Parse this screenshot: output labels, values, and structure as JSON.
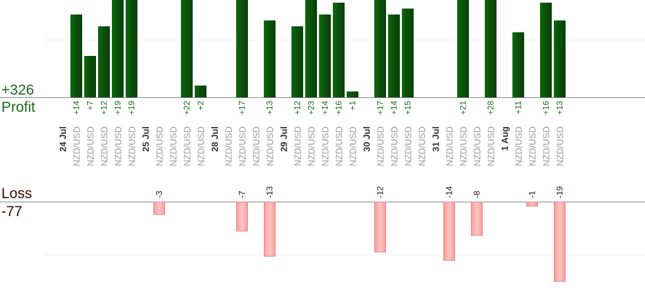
{
  "profit": {
    "total": "+326",
    "label": "Profit"
  },
  "loss": {
    "label": "Loss",
    "total": "-77"
  },
  "colors": {
    "profit_bar": "#0a5a0a",
    "profit_text": "#1a6a1a",
    "loss_bar": "#ffb0b0",
    "loss_text": "#3a0a0a",
    "pair_text": "#999999",
    "date_text": "#333333"
  },
  "chart_data": {
    "type": "bar",
    "categories": [
      "NZD/USD",
      "NZD/USD",
      "NZD/USD",
      "NZD/USD",
      "NZD/USD",
      "NZD/USD",
      "NZD/USD",
      "NZD/USD",
      "NZD/USD",
      "NZD/USD",
      "NZD/USD",
      "NZD/USD",
      "NZD/USD",
      "NZD/USD",
      "NZD/USD",
      "NZD/USD",
      "NZD/USD",
      "NZD/USD",
      "NZD/USD",
      "NZD/USD",
      "NZD/USD",
      "NZD/USD",
      "NZD/USD",
      "NZD/USD",
      "NZD/USD",
      "NZD/USD",
      "NZD/USD",
      "NZD/USD",
      "NZD/USD",
      "NZD/USD"
    ],
    "date_labels": [
      {
        "label": "24 Jul",
        "start": 0
      },
      {
        "label": "25 Jul",
        "start": 5
      },
      {
        "label": "28 Jul",
        "start": 9
      },
      {
        "label": "29 Jul",
        "start": 13
      },
      {
        "label": "30 Jul",
        "start": 18
      },
      {
        "label": "31 Jul",
        "start": 22
      },
      {
        "label": "1 Aug",
        "start": 26
      }
    ],
    "series": [
      {
        "name": "Profit",
        "values": [
          14,
          7,
          12,
          19,
          19,
          null,
          null,
          22,
          2,
          null,
          17,
          null,
          13,
          12,
          23,
          14,
          16,
          1,
          17,
          14,
          15,
          null,
          null,
          21,
          null,
          28,
          11,
          null,
          16,
          13
        ]
      },
      {
        "name": "Loss",
        "values": [
          null,
          null,
          null,
          null,
          null,
          -3,
          null,
          null,
          null,
          null,
          -7,
          null,
          -13,
          null,
          null,
          null,
          null,
          null,
          -12,
          null,
          null,
          null,
          -14,
          null,
          -8,
          null,
          null,
          -1,
          null,
          -19
        ]
      }
    ],
    "value_labels": {
      "profit": [
        "+14",
        "+7",
        "+12",
        "+19",
        "+19",
        "",
        "",
        "+22",
        "+2",
        "",
        "+17",
        "",
        "+13",
        "+12",
        "+23",
        "+14",
        "+16",
        "+1",
        "+17",
        "+14",
        "+15",
        "",
        "",
        "+21",
        "",
        "+28",
        "+11",
        "",
        "+16",
        "+13"
      ],
      "loss": [
        "",
        "",
        "",
        "",
        "",
        "-3",
        "",
        "",
        "",
        "",
        "-7",
        "",
        "-13",
        "",
        "",
        "",
        "",
        "",
        "-12",
        "",
        "",
        "",
        "-14",
        "",
        "-8",
        "",
        "",
        "-1",
        "",
        "-19"
      ]
    },
    "ylim_profit": [
      0,
      17
    ],
    "ylim_loss": [
      -19,
      0
    ],
    "grid": true
  }
}
